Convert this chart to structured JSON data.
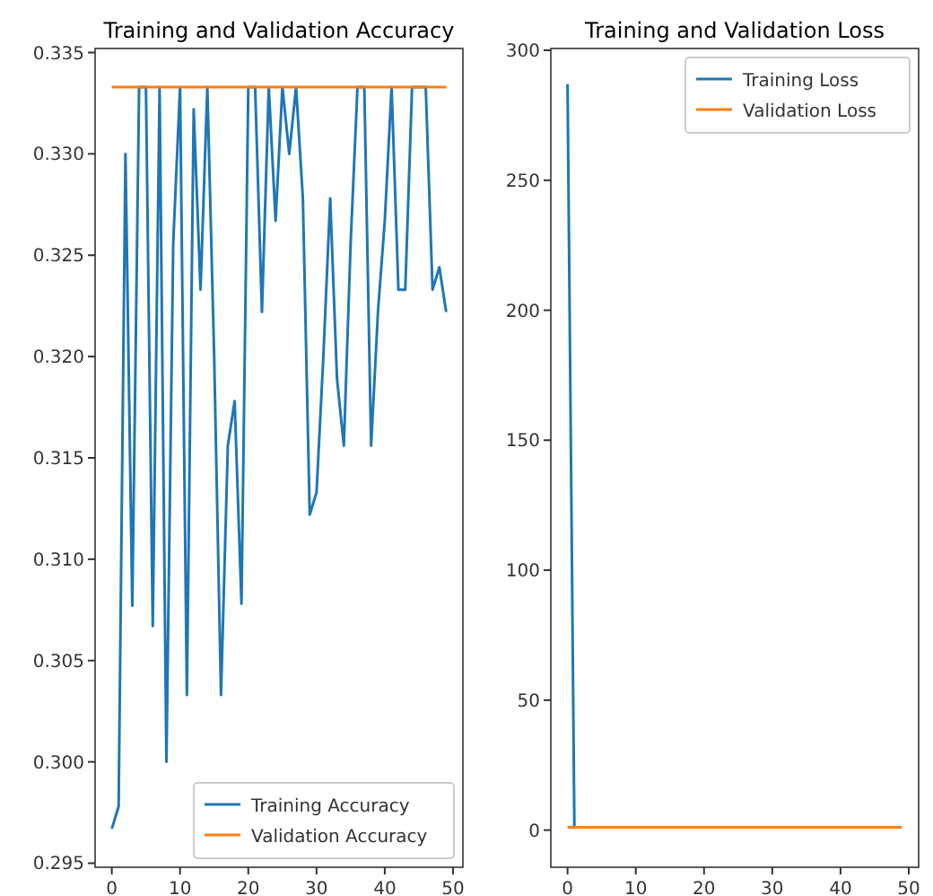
{
  "chart_data": [
    {
      "type": "line",
      "title": "Training and Validation Accuracy",
      "x": [
        0,
        1,
        2,
        3,
        4,
        5,
        6,
        7,
        8,
        9,
        10,
        11,
        12,
        13,
        14,
        15,
        16,
        17,
        18,
        19,
        20,
        21,
        22,
        23,
        24,
        25,
        26,
        27,
        28,
        29,
        30,
        31,
        32,
        33,
        34,
        35,
        36,
        37,
        38,
        39,
        40,
        41,
        42,
        43,
        44,
        45,
        46,
        47,
        48,
        49
      ],
      "series": [
        {
          "name": "Training Accuracy",
          "color": "#1f77b4",
          "values": [
            0.2967,
            0.2978,
            0.33,
            0.3077,
            0.3333,
            0.3333,
            0.3067,
            0.3333,
            0.3,
            0.3256,
            0.3333,
            0.3033,
            0.3322,
            0.3233,
            0.3333,
            0.32,
            0.3033,
            0.3156,
            0.3178,
            0.3078,
            0.3333,
            0.3333,
            0.3222,
            0.3333,
            0.3267,
            0.3333,
            0.33,
            0.3333,
            0.3278,
            0.3122,
            0.3133,
            0.32,
            0.3278,
            0.3189,
            0.3156,
            0.3256,
            0.3333,
            0.3333,
            0.3156,
            0.3222,
            0.3267,
            0.3333,
            0.3233,
            0.3233,
            0.3333,
            0.3333,
            0.3333,
            0.3233,
            0.3244,
            0.3222
          ]
        },
        {
          "name": "Validation Accuracy",
          "color": "#ff7f0e",
          "values": [
            0.3333,
            0.3333,
            0.3333,
            0.3333,
            0.3333,
            0.3333,
            0.3333,
            0.3333,
            0.3333,
            0.3333,
            0.3333,
            0.3333,
            0.3333,
            0.3333,
            0.3333,
            0.3333,
            0.3333,
            0.3333,
            0.3333,
            0.3333,
            0.3333,
            0.3333,
            0.3333,
            0.3333,
            0.3333,
            0.3333,
            0.3333,
            0.3333,
            0.3333,
            0.3333,
            0.3333,
            0.3333,
            0.3333,
            0.3333,
            0.3333,
            0.3333,
            0.3333,
            0.3333,
            0.3333,
            0.3333,
            0.3333,
            0.3333,
            0.3333,
            0.3333,
            0.3333,
            0.3333,
            0.3333,
            0.3333,
            0.3333,
            0.3333
          ]
        }
      ],
      "xlim": [
        -2.45,
        51.45
      ],
      "xticks": [
        0,
        10,
        20,
        30,
        40,
        50
      ],
      "ylim": [
        0.2948,
        0.3352
      ],
      "yticks": [
        {
          "value": 0.295,
          "label": "0.295"
        },
        {
          "value": 0.3,
          "label": "0.300"
        },
        {
          "value": 0.305,
          "label": "0.305"
        },
        {
          "value": 0.31,
          "label": "0.310"
        },
        {
          "value": 0.315,
          "label": "0.315"
        },
        {
          "value": 0.32,
          "label": "0.320"
        },
        {
          "value": 0.325,
          "label": "0.325"
        },
        {
          "value": 0.33,
          "label": "0.330"
        },
        {
          "value": 0.335,
          "label": "0.335"
        }
      ],
      "legend": "bottom right",
      "grid": false
    },
    {
      "type": "line",
      "title": "Training and Validation Loss",
      "x": [
        0,
        1,
        2,
        3,
        4,
        5,
        6,
        7,
        8,
        9,
        10,
        11,
        12,
        13,
        14,
        15,
        16,
        17,
        18,
        19,
        20,
        21,
        22,
        23,
        24,
        25,
        26,
        27,
        28,
        29,
        30,
        31,
        32,
        33,
        34,
        35,
        36,
        37,
        38,
        39,
        40,
        41,
        42,
        43,
        44,
        45,
        46,
        47,
        48,
        49
      ],
      "series": [
        {
          "name": "Training Loss",
          "color": "#1f77b4",
          "values": [
            287,
            1.1,
            null,
            null,
            null,
            null,
            null,
            null,
            null,
            null,
            null,
            null,
            null,
            null,
            null,
            null,
            null,
            null,
            null,
            null,
            null,
            null,
            null,
            null,
            null,
            null,
            null,
            null,
            null,
            null,
            null,
            null,
            null,
            null,
            null,
            null,
            null,
            null,
            null,
            null,
            null,
            null,
            null,
            null,
            null,
            null,
            null,
            null,
            null,
            null
          ]
        },
        {
          "name": "Validation Loss",
          "color": "#ff7f0e",
          "values": [
            1.1,
            1.1,
            1.1,
            1.1,
            1.1,
            1.1,
            1.1,
            1.1,
            1.1,
            1.1,
            1.1,
            1.1,
            1.1,
            1.1,
            1.1,
            1.1,
            1.1,
            1.1,
            1.1,
            1.1,
            1.1,
            1.1,
            1.1,
            1.1,
            1.1,
            1.1,
            1.1,
            1.1,
            1.1,
            1.1,
            1.1,
            1.1,
            1.1,
            1.1,
            1.1,
            1.1,
            1.1,
            1.1,
            1.1,
            1.1,
            1.1,
            1.1,
            1.1,
            1.1,
            1.1,
            1.1,
            1.1,
            1.1,
            1.1,
            1.1
          ]
        }
      ],
      "xlim": [
        -2.45,
        51.45
      ],
      "xticks": [
        0,
        10,
        20,
        30,
        40,
        50
      ],
      "ylim": [
        -14.3,
        300.7
      ],
      "yticks": [
        0,
        50,
        100,
        150,
        200,
        250,
        300
      ],
      "legend": "top right",
      "grid": false
    }
  ]
}
